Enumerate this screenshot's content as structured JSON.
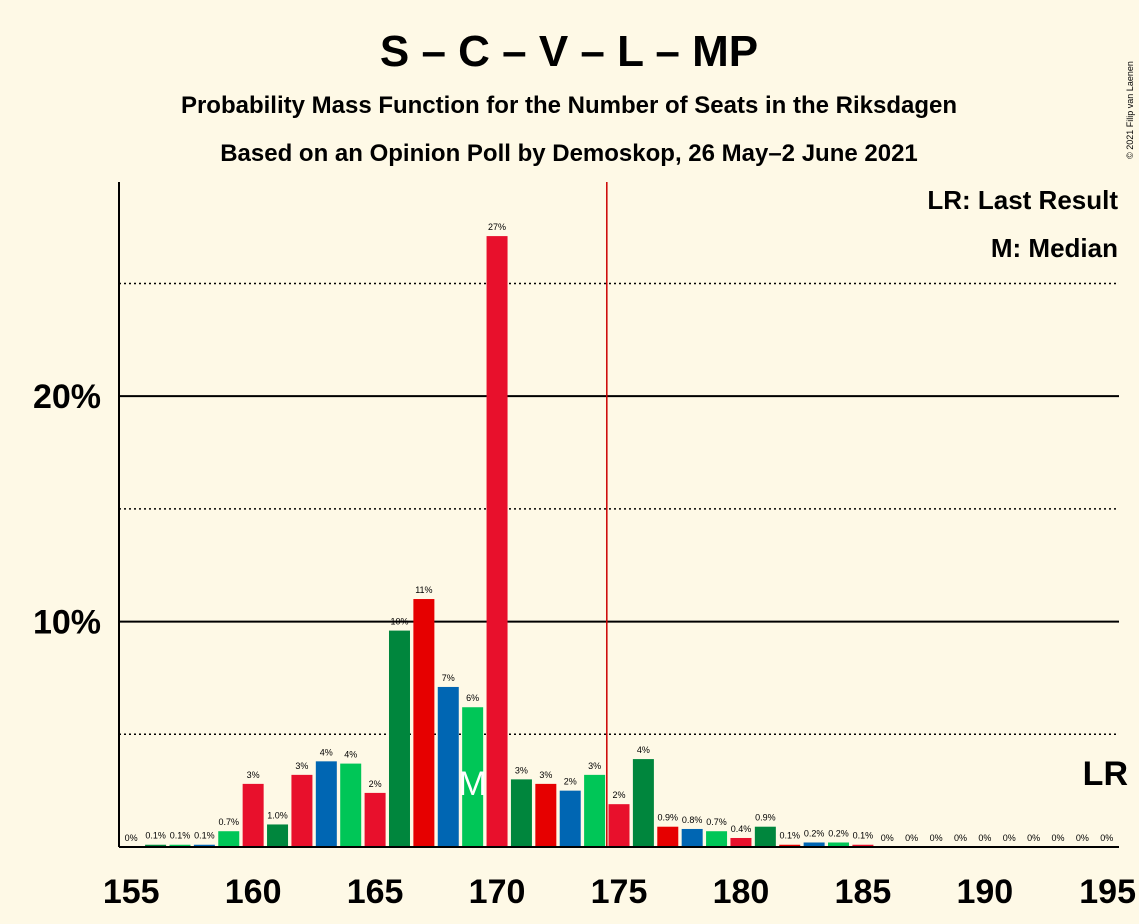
{
  "header": {
    "title": "S – C – V – L – MP",
    "subtitle1": "Probability Mass Function for the Number of Seats in the Riksdagen",
    "subtitle2": "Based on an Opinion Poll by Demoskop, 26 May–2 June 2021"
  },
  "credit": "© 2021 Filip van Laenen",
  "legend": {
    "lr": "LR: Last Result",
    "m": "M: Median"
  },
  "lr_label": "LR",
  "median_label": "M",
  "chart_data": {
    "type": "bar",
    "x": [
      155,
      156,
      157,
      158,
      159,
      160,
      161,
      162,
      163,
      164,
      165,
      166,
      167,
      168,
      169,
      170,
      171,
      172,
      173,
      174,
      175,
      176,
      177,
      178,
      179,
      180,
      181,
      182,
      183,
      184,
      185,
      186,
      187,
      188,
      189,
      190,
      191,
      192,
      193,
      194,
      195
    ],
    "values": [
      0,
      0.1,
      0.1,
      0.1,
      0.7,
      2.8,
      1.0,
      3.2,
      3.8,
      3.7,
      2.4,
      9.6,
      11.0,
      7.1,
      6.2,
      27.1,
      3.0,
      2.8,
      2.5,
      3.2,
      1.9,
      3.9,
      0.9,
      0.8,
      0.7,
      0.4,
      0.9,
      0.1,
      0.2,
      0.2,
      0.1,
      0,
      0,
      0,
      0,
      0,
      0,
      0,
      0,
      0,
      0
    ],
    "labels": [
      "0%",
      "0.1%",
      "0.1%",
      "0.1%",
      "0.7%",
      "3%",
      "1.0%",
      "3%",
      "4%",
      "4%",
      "2%",
      "10%",
      "11%",
      "7%",
      "6%",
      "27%",
      "3%",
      "3%",
      "2%",
      "3%",
      "2%",
      "4%",
      "0.9%",
      "0.8%",
      "0.7%",
      "0.4%",
      "0.9%",
      "0.1%",
      "0.2%",
      "0.2%",
      "0.1%",
      "0%",
      "0%",
      "0%",
      "0%",
      "0%",
      "0%",
      "0%",
      "0%",
      "0%",
      "0%"
    ],
    "colors": [
      "#e8102c",
      "#00863d",
      "#00c657",
      "#0066b3",
      "#00c657",
      "#e8102c",
      "#00863d",
      "#e8102c",
      "#0066b3",
      "#00c657",
      "#e8102c",
      "#00863d",
      "#e60000",
      "#0066b3",
      "#00c657",
      "#e8102c",
      "#00863d",
      "#e60000",
      "#0066b3",
      "#00c657",
      "#e8102c",
      "#00863d",
      "#e60000",
      "#0066b3",
      "#00c657",
      "#e8102c",
      "#00863d",
      "#e60000",
      "#0066b3",
      "#00c657",
      "#e8102c",
      "#00863d",
      "#e60000",
      "#0066b3",
      "#00c657",
      "#e8102c",
      "#00863d",
      "#e60000",
      "#0066b3",
      "#00c657",
      "#e8102c"
    ],
    "x_ticks": [
      155,
      160,
      165,
      170,
      175,
      180,
      185,
      190,
      195
    ],
    "x_tick_labels": [
      "155",
      "160",
      "165",
      "170",
      "175",
      "180",
      "185",
      "190",
      "195"
    ],
    "y_ticks": [
      10,
      20
    ],
    "y_tick_labels": [
      "10%",
      "20%"
    ],
    "y_minor_gridlines": [
      5,
      15,
      25
    ],
    "ylim": [
      0,
      29.5
    ],
    "xlim": [
      154.5,
      195.5
    ],
    "last_result": 175,
    "median": 169,
    "title": "S – C – V – L – MP",
    "xlabel": "",
    "ylabel": "",
    "grid": true,
    "legend_position": "top-right"
  }
}
